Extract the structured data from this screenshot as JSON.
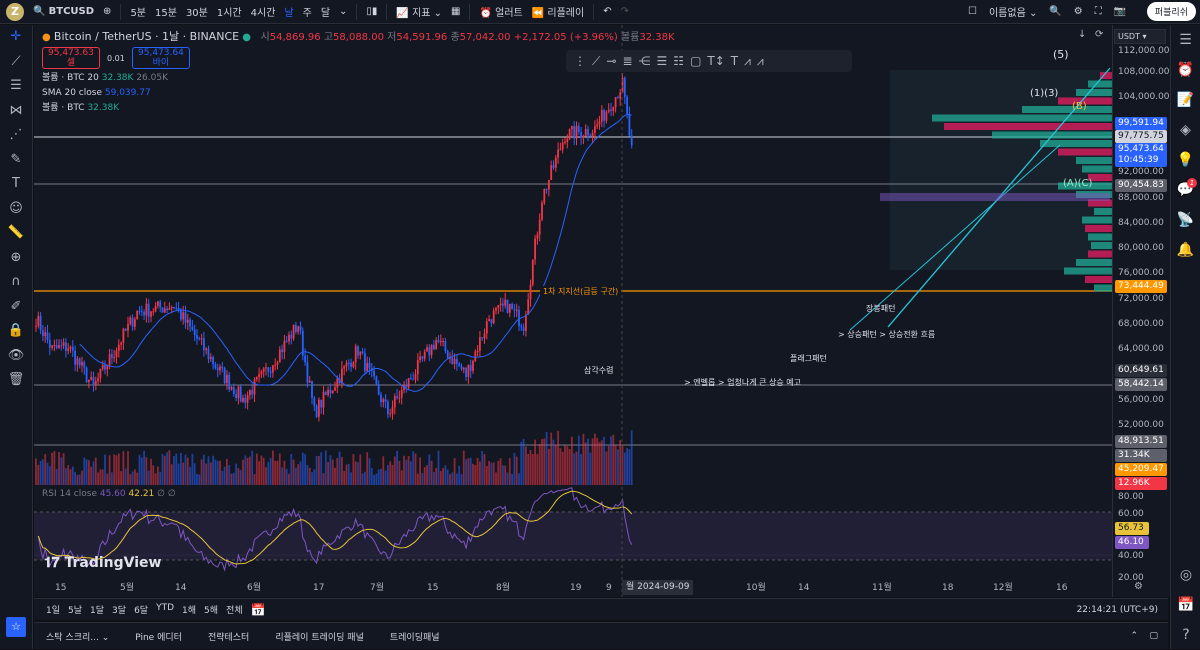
{
  "topbar": {
    "logo": "Z",
    "symbol": "BTCUSD",
    "intervals": [
      "5분",
      "15분",
      "30분",
      "1시간",
      "4시간",
      "날",
      "주",
      "달"
    ],
    "active_interval": "날",
    "indicators": "지표",
    "alert": "얼러트",
    "replay": "리플레이",
    "layout_name": "이름없음",
    "publish": "퍼블리쉬"
  },
  "legend": {
    "title": "Bitcoin / TetherUS · 1날 · BINANCE",
    "open_l": "시",
    "open": "54,869.96",
    "high_l": "고",
    "high": "58,088.00",
    "low_l": "저",
    "low": "54,591.96",
    "close_l": "종",
    "close": "57,042.00",
    "change": "+2,172.05 (+3.96%)",
    "vol_l": "볼륨",
    "vol": "32.38K",
    "sell_price": "95,473.63",
    "sell_label": "셀",
    "spread": "0.01",
    "buy_price": "95,473.64",
    "buy_label": "바이",
    "ind1_name": "볼륨 · BTC 20",
    "ind1_v1": "32.38K",
    "ind1_v2": "26.05K",
    "ind2_name": "SMA 20 close",
    "ind2_v": "59,039.77",
    "ind3_name": "볼륨 · BTC",
    "ind3_v": "32.38K"
  },
  "price_axis": {
    "currency": "USDT",
    "ticks": [
      "112,000.00",
      "108,000.00",
      "104,000.00",
      "92,000.00",
      "88,000.00",
      "84,000.00",
      "80,000.00",
      "76,000.00",
      "72,000.00",
      "68,000.00",
      "64,000.00",
      "56,000.00",
      "52,000.00"
    ],
    "tags": [
      {
        "v": "99,591.94",
        "c": "#2962ff"
      },
      {
        "v": "97,775.75",
        "c": "#d1d4dc"
      },
      {
        "v": "95,473.64",
        "c": "#2962ff",
        "sub": "10:45:39"
      },
      {
        "v": "90,454.83",
        "c": "#5d606b"
      },
      {
        "v": "73,444.49",
        "c": "#ff9800"
      },
      {
        "v": "60,649.61",
        "c": "#2a2e39"
      },
      {
        "v": "58,442.14",
        "c": "#5d606b"
      },
      {
        "v": "48,913.51",
        "c": "#5d606b"
      },
      {
        "v": "31.34K",
        "c": "#5d606b"
      },
      {
        "v": "45,209.47",
        "c": "#ff9800"
      },
      {
        "v": "12.96K",
        "c": "#f23645"
      }
    ],
    "rsi_ticks": [
      "80.00",
      "60.00",
      "40.00",
      "20.00"
    ],
    "rsi_tags": [
      {
        "v": "56.73",
        "c": "#e8c33a"
      },
      {
        "v": "46.10",
        "c": "#7e57c2"
      }
    ]
  },
  "annotations": {
    "support": "1차 지지선(급등 구간)",
    "a1": "삼각수렴",
    "a2": "> 엔벨롭 > 엄청나게 큰 상승 예고",
    "a3": "플래그패턴",
    "a4": "장봉패턴",
    "a5": "> 상승패턴 > 상승전환 흐름",
    "w5": "(5)",
    "w13": "(1)(3)",
    "wB": "(B)",
    "wAC": "(A)(C)"
  },
  "rsi": {
    "name": "RSI 14 close",
    "v1": "45.60",
    "v2": "42.21",
    "extra": "∅ ∅"
  },
  "watermark": "TradingView",
  "time_axis": {
    "labels": [
      "15",
      "5월",
      "14",
      "6월",
      "17",
      "7월",
      "15",
      "8월",
      "19",
      "9",
      "10월",
      "14",
      "11월",
      "18",
      "12월",
      "16"
    ],
    "cursor": "월 2024-09-09"
  },
  "range_bar": {
    "items": [
      "1일",
      "5날",
      "1달",
      "3달",
      "6달",
      "YTD",
      "1해",
      "5해",
      "전체"
    ],
    "clock": "22:14:21 (UTC+9)"
  },
  "bottom_panel": {
    "tabs": [
      "스탁 스크리...",
      "Pine 에디터",
      "전략테스터",
      "리플레이 트레이딩 패널",
      "트레이딩패널"
    ]
  },
  "colors": {
    "up": "#f23645",
    "down": "#2962ff",
    "sma": "#2962ff",
    "support": "#ff9800",
    "rsi": "#7e57c2",
    "rsi_ma": "#e8c33a"
  },
  "chart_data": {
    "type": "candlestick",
    "anchors": [
      [
        "04-06",
        69000
      ],
      [
        "04-13",
        64000
      ],
      [
        "04-20",
        64500
      ],
      [
        "05-01",
        58000
      ],
      [
        "05-20",
        70000
      ],
      [
        "06-05",
        71000
      ],
      [
        "06-24",
        61000
      ],
      [
        "07-05",
        56000
      ],
      [
        "07-14",
        60000
      ],
      [
        "07-29",
        68000
      ],
      [
        "08-05",
        54000
      ],
      [
        "08-24",
        64000
      ],
      [
        "09-06",
        54000
      ],
      [
        "09-27",
        65500
      ],
      [
        "10-10",
        60000
      ],
      [
        "10-20",
        69000
      ],
      [
        "10-28",
        71000
      ],
      [
        "11-04",
        68000
      ],
      [
        "11-12",
        88000
      ],
      [
        "11-22",
        98000
      ],
      [
        "12-05",
        99000
      ],
      [
        "12-17",
        106000
      ],
      [
        "12-21",
        95473
      ]
    ]
  }
}
